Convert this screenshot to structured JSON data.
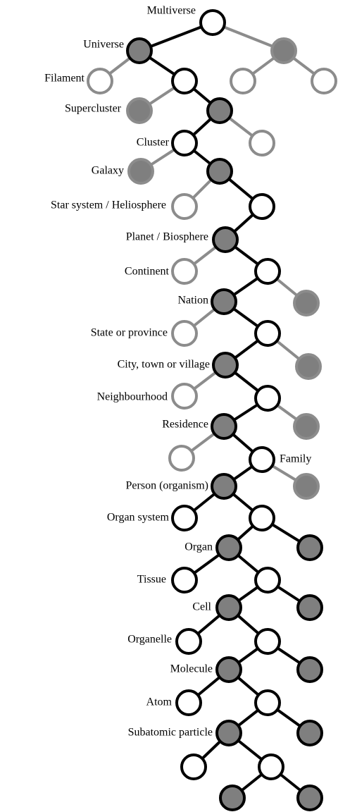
{
  "labels": [
    "Multiverse",
    "Universe",
    "Filament",
    "Supercluster",
    "Cluster",
    "Galaxy",
    "Star system / Heliosphere",
    "Planet / Biosphere",
    "Continent",
    "Nation",
    "State or province",
    "City, town or village",
    "Neighbourhood",
    "Residence",
    "Family",
    "Person (organism)",
    "Organ system",
    "Organ",
    "Tissue",
    "Cell",
    "Organelle",
    "Molecule",
    "Atom",
    "Subatomic particle"
  ]
}
